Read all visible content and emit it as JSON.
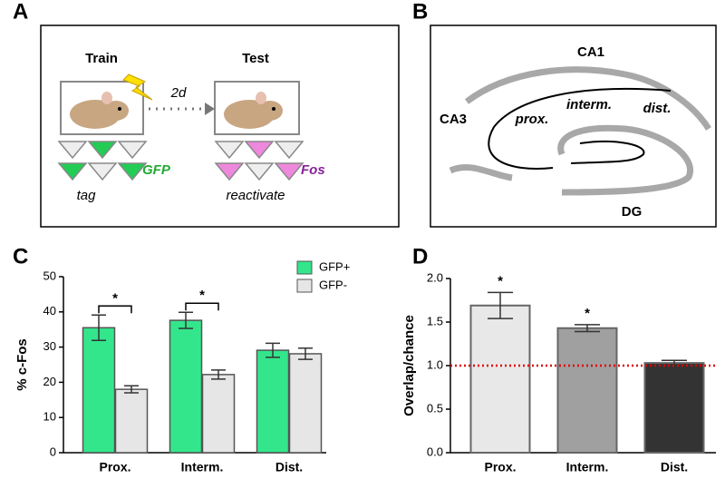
{
  "panels": [
    "A",
    "B",
    "C",
    "D"
  ],
  "panel_a": {
    "train": "Train",
    "test": "Test",
    "interval": "2d",
    "gfp": "GFP",
    "fos": "Fos",
    "tag": "tag",
    "reactivate": "reactivate"
  },
  "panel_b": {
    "ca1": "CA1",
    "ca3": "CA3",
    "prox": "prox.",
    "interm": "interm.",
    "dist": "dist.",
    "dg": "DG"
  },
  "chart_data": [
    {
      "type": "bar",
      "ylabel": "% c-Fos",
      "categories": [
        "Prox.",
        "Interm.",
        "Dist."
      ],
      "series": [
        {
          "name": "GFP+",
          "color": "#33e68c",
          "values": [
            35.5,
            37.6,
            29.1
          ],
          "errors": [
            3.6,
            2.3,
            2.0
          ]
        },
        {
          "name": "GFP-",
          "color": "#e6e6e6",
          "values": [
            18.0,
            22.2,
            28.1
          ],
          "errors": [
            1.0,
            1.3,
            1.6
          ]
        }
      ],
      "annotations": [
        "*",
        "*",
        null
      ],
      "ylim": [
        0,
        50
      ],
      "yticks": [
        0,
        10,
        20,
        30,
        40,
        50
      ],
      "legend": "upper right"
    },
    {
      "type": "bar",
      "ylabel": "Overlap/chance",
      "categories": [
        "Prox.",
        "Interm.",
        "Dist."
      ],
      "values": [
        1.69,
        1.43,
        1.03
      ],
      "errors": [
        0.15,
        0.04,
        0.03
      ],
      "colors": [
        "#e8e8e8",
        "#a0a0a0",
        "#333333"
      ],
      "annotations": [
        "*",
        "*",
        null
      ],
      "reference_line": {
        "value": 1.0,
        "color": "#e00000"
      },
      "ylim": [
        0,
        2
      ],
      "yticks": [
        {
          "value": 0,
          "label": "0.0"
        },
        0.5,
        {
          "value": 1,
          "label": "1.0"
        },
        1.5,
        {
          "value": 2,
          "label": "2.0"
        }
      ]
    }
  ]
}
